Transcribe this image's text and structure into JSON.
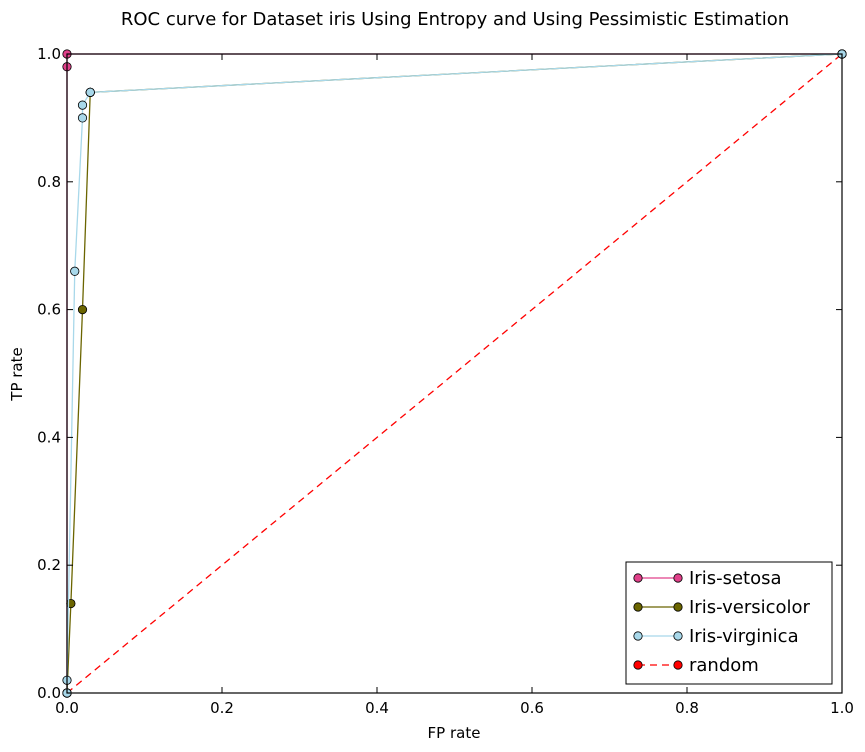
{
  "chart_data": {
    "type": "line",
    "title": "ROC curve for Dataset iris Using Entropy and Using Pessimistic Estimation",
    "xlabel": "FP rate",
    "ylabel": "TP rate",
    "xlim": [
      0.0,
      1.0
    ],
    "ylim": [
      0.0,
      1.0
    ],
    "xticks": [
      "0.0",
      "0.2",
      "0.4",
      "0.6",
      "0.8",
      "1.0"
    ],
    "yticks": [
      "0.0",
      "0.2",
      "0.4",
      "0.6",
      "0.8",
      "1.0"
    ],
    "grid": false,
    "legend_position": "bottom-right",
    "series": [
      {
        "name": "Iris-setosa",
        "color": "#e0408a",
        "line_style": "solid",
        "x": [
          0.0,
          0.0,
          0.0,
          1.0
        ],
        "y": [
          0.0,
          0.98,
          1.0,
          1.0
        ]
      },
      {
        "name": "Iris-versicolor",
        "color": "#6b6500",
        "line_style": "solid",
        "x": [
          0.0,
          0.005,
          0.02,
          0.03,
          0.03,
          1.0
        ],
        "y": [
          0.0,
          0.14,
          0.6,
          0.94,
          0.94,
          1.0
        ]
      },
      {
        "name": "Iris-virginica",
        "color": "#a8d8ea",
        "line_style": "solid",
        "x": [
          0.0,
          0.0,
          0.01,
          0.02,
          0.02,
          0.03,
          0.03,
          1.0
        ],
        "y": [
          0.0,
          0.02,
          0.66,
          0.9,
          0.92,
          0.94,
          0.94,
          1.0
        ]
      },
      {
        "name": "random",
        "color": "#ff0000",
        "line_style": "dashed",
        "x": [
          0.0,
          1.0
        ],
        "y": [
          0.0,
          1.0
        ]
      }
    ]
  }
}
